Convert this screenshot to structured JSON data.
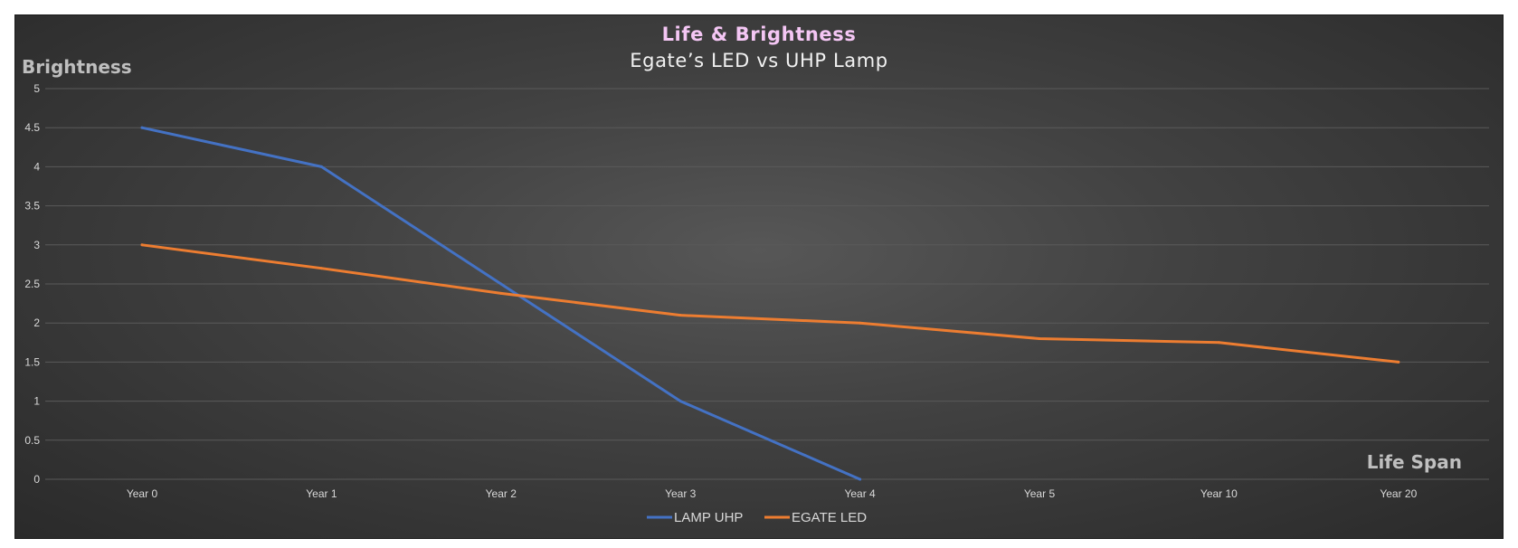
{
  "chart_data": {
    "type": "line",
    "title": "Life & Brightness",
    "subtitle": "Egate’s LED vs UHP Lamp",
    "ylabel": "Brightness",
    "xlabel": "Life Span",
    "categories": [
      "Year 0",
      "Year 1",
      "Year 2",
      "Year 3",
      "Year 4",
      "Year 5",
      "Year 10",
      "Year 20"
    ],
    "ylim": [
      0,
      5
    ],
    "yticks": [
      "0",
      "0.5",
      "1",
      "1.5",
      "2",
      "2.5",
      "3",
      "3.5",
      "4",
      "4.5",
      "5"
    ],
    "grid": true,
    "legend_position": "bottom",
    "series": [
      {
        "name": "LAMP UHP",
        "color": "#4472c4",
        "values": [
          4.5,
          4.0,
          2.5,
          1.0,
          0.0,
          null,
          null,
          null
        ]
      },
      {
        "name": "EGATE LED",
        "color": "#ed7d31",
        "values": [
          3.0,
          2.7,
          2.38,
          2.1,
          2.0,
          1.8,
          1.75,
          1.5
        ]
      }
    ],
    "title_color": "#f4c6f4",
    "background": "#404040"
  }
}
